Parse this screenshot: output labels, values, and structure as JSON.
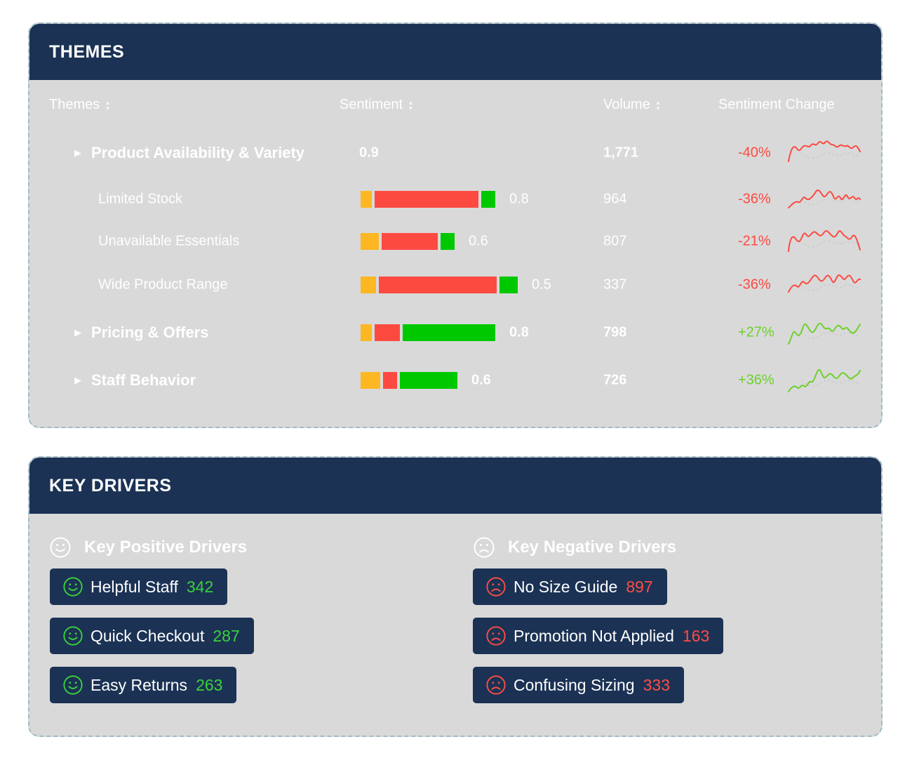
{
  "themes_card": {
    "title": "THEMES",
    "columns": {
      "themes": "Themes",
      "sentiment": "Sentiment",
      "volume": "Volume",
      "change": "Sentiment Change"
    },
    "rows": [
      {
        "name": "Product Availability & Variety",
        "level": "main",
        "expandable": true,
        "score": "0.9",
        "volume": "1,771",
        "change": "-40%",
        "trend": "negative",
        "bar": null
      },
      {
        "name": "Limited Stock",
        "level": "sub",
        "expandable": false,
        "score": "0.8",
        "volume": "964",
        "change": "-36%",
        "trend": "negative",
        "bar": {
          "neutral": 0.08,
          "negative": 0.74,
          "positive": 0.1
        }
      },
      {
        "name": "Unavailable Essentials",
        "level": "sub",
        "expandable": false,
        "score": "0.6",
        "volume": "807",
        "change": "-21%",
        "trend": "negative",
        "bar": {
          "neutral": 0.13,
          "negative": 0.4,
          "positive": 0.1
        }
      },
      {
        "name": "Wide Product Range",
        "level": "sub",
        "expandable": false,
        "score": "0.5",
        "volume": "337",
        "change": "-36%",
        "trend": "negative",
        "bar": {
          "neutral": 0.11,
          "negative": 0.84,
          "positive": 0.13
        }
      },
      {
        "name": "Pricing & Offers",
        "level": "main",
        "expandable": true,
        "score": "0.8",
        "volume": "798",
        "change": "+27%",
        "trend": "positive",
        "bar": {
          "neutral": 0.08,
          "negative": 0.18,
          "positive": 0.66
        }
      },
      {
        "name": "Staff Behavior",
        "level": "main",
        "expandable": true,
        "score": "0.6",
        "volume": "726",
        "change": "+36%",
        "trend": "positive",
        "bar": {
          "neutral": 0.14,
          "negative": 0.1,
          "positive": 0.41
        }
      }
    ]
  },
  "drivers_card": {
    "title": "KEY DRIVERS",
    "positive_title": "Key Positive Drivers",
    "negative_title": "Key Negative Drivers",
    "positive": [
      {
        "label": "Helpful Staff",
        "count": "342"
      },
      {
        "label": "Quick Checkout",
        "count": "287"
      },
      {
        "label": "Easy Returns",
        "count": "263"
      }
    ],
    "negative": [
      {
        "label": "No Size Guide",
        "count": "897"
      },
      {
        "label": "Promotion Not Applied",
        "count": "163"
      },
      {
        "label": "Confusing Sizing",
        "count": "333"
      }
    ]
  },
  "colors": {
    "header_bg": "#1b3254",
    "card_bg": "#d9d9d9",
    "neutral": "#fcb723",
    "negative": "#fd4a41",
    "positive": "#00c800",
    "positive_text": "#6cd12a",
    "negative_text": "#fd4a41",
    "count_positive": "#3ad13c",
    "count_negative": "#ff4d45"
  },
  "icons": {
    "sort": "sort-arrows-icon",
    "expand": "caret-right-icon",
    "smile": "smile-icon",
    "frown": "frown-icon"
  }
}
